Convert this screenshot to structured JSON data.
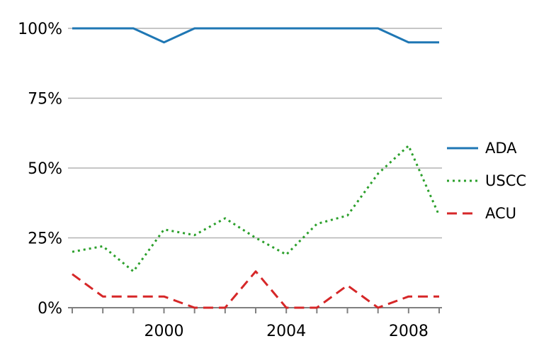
{
  "chart_data": {
    "type": "line",
    "x": [
      1997,
      1998,
      1999,
      2000,
      2001,
      2002,
      2003,
      2004,
      2005,
      2006,
      2007,
      2008,
      2009
    ],
    "series": [
      {
        "name": "ADA",
        "color": "#1f77b4",
        "dash": "solid",
        "values": [
          100,
          100,
          100,
          95,
          100,
          100,
          100,
          100,
          100,
          100,
          100,
          95,
          95
        ]
      },
      {
        "name": "USCC",
        "color": "#2ca02c",
        "dash": "dotted",
        "values": [
          20,
          22,
          13,
          28,
          26,
          32,
          25,
          19,
          30,
          33,
          48,
          58,
          33
        ]
      },
      {
        "name": "ACU",
        "color": "#d62728",
        "dash": "dashed",
        "values": [
          12,
          4,
          4,
          4,
          0,
          0,
          13,
          0,
          0,
          8,
          0,
          4,
          4
        ]
      }
    ],
    "title": "",
    "xlabel": "",
    "ylabel": "",
    "ylim": [
      0,
      100
    ],
    "yticks": [
      {
        "value": 0,
        "label": "0%"
      },
      {
        "value": 25,
        "label": "25%"
      },
      {
        "value": 50,
        "label": "50%"
      },
      {
        "value": 75,
        "label": "75%"
      },
      {
        "value": 100,
        "label": "100%"
      }
    ],
    "xticks_labeled": [
      {
        "value": 2000,
        "label": "2000"
      },
      {
        "value": 2004,
        "label": "2004"
      },
      {
        "value": 2008,
        "label": "2008"
      }
    ],
    "grid": "horizontal",
    "grid_color": "#b3b3b3",
    "axis_color": "#808080",
    "legend_position": "right"
  }
}
